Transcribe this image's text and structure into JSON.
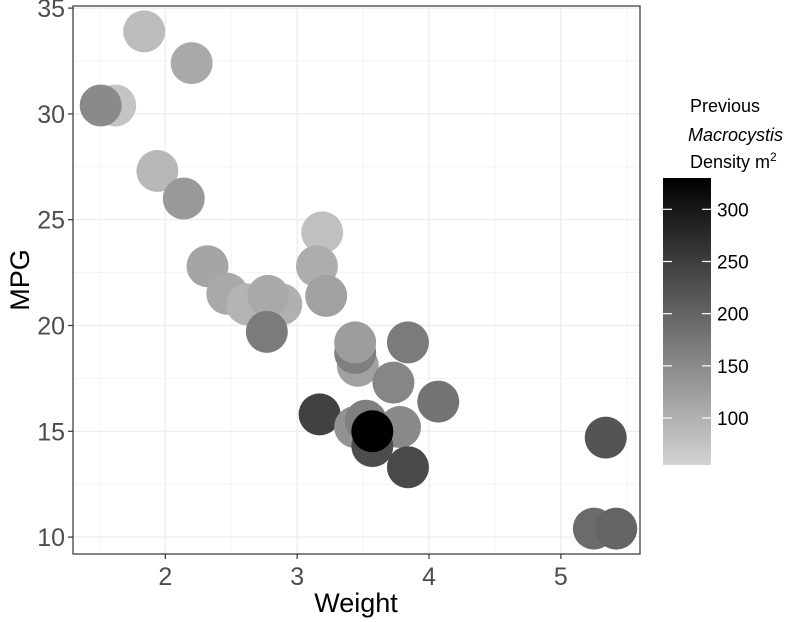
{
  "chart_data": {
    "type": "scatter",
    "title": "",
    "xlabel": "Weight",
    "ylabel": "MPG",
    "xlim": [
      1.3,
      5.6
    ],
    "ylim": [
      9.2,
      35.1
    ],
    "xticks": [
      2,
      3,
      4,
      5
    ],
    "yticks": [
      10,
      15,
      20,
      25,
      30,
      35
    ],
    "x_tick_labels": [
      "2",
      "3",
      "4",
      "5"
    ],
    "y_tick_labels": [
      "10",
      "15",
      "20",
      "25",
      "30",
      "35"
    ],
    "grid": true,
    "legend": {
      "position": "right",
      "title_line1": "Previous",
      "title_line2": "Macrocystis",
      "title_line3_text": "Density m",
      "title_line3_sup": "2",
      "range": [
        55,
        330
      ],
      "ticks": [
        100,
        150,
        200,
        250,
        300
      ],
      "tick_labels": [
        "100",
        "150",
        "200",
        "250",
        "300"
      ],
      "color_low": "#d3d3d3",
      "color_high": "#000000"
    },
    "points": [
      {
        "x": 1.84,
        "y": 33.9,
        "density": 85
      },
      {
        "x": 2.2,
        "y": 32.4,
        "density": 110
      },
      {
        "x": 1.62,
        "y": 30.4,
        "density": 75
      },
      {
        "x": 1.51,
        "y": 30.4,
        "density": 150
      },
      {
        "x": 1.94,
        "y": 27.3,
        "density": 90
      },
      {
        "x": 2.14,
        "y": 26.0,
        "density": 130
      },
      {
        "x": 3.19,
        "y": 24.4,
        "density": 80
      },
      {
        "x": 2.32,
        "y": 22.8,
        "density": 115
      },
      {
        "x": 3.15,
        "y": 22.8,
        "density": 105
      },
      {
        "x": 2.47,
        "y": 21.5,
        "density": 110
      },
      {
        "x": 2.62,
        "y": 21.0,
        "density": 95
      },
      {
        "x": 2.88,
        "y": 21.0,
        "density": 100
      },
      {
        "x": 2.78,
        "y": 21.4,
        "density": 110
      },
      {
        "x": 3.22,
        "y": 21.4,
        "density": 120
      },
      {
        "x": 2.77,
        "y": 19.7,
        "density": 170
      },
      {
        "x": 3.46,
        "y": 18.1,
        "density": 120
      },
      {
        "x": 3.44,
        "y": 18.7,
        "density": 165
      },
      {
        "x": 3.44,
        "y": 19.2,
        "density": 125
      },
      {
        "x": 3.84,
        "y": 19.2,
        "density": 170
      },
      {
        "x": 3.73,
        "y": 17.3,
        "density": 155
      },
      {
        "x": 4.07,
        "y": 16.4,
        "density": 180
      },
      {
        "x": 3.17,
        "y": 15.8,
        "density": 245
      },
      {
        "x": 3.44,
        "y": 15.2,
        "density": 140
      },
      {
        "x": 3.52,
        "y": 15.5,
        "density": 165
      },
      {
        "x": 3.78,
        "y": 15.2,
        "density": 150
      },
      {
        "x": 3.57,
        "y": 14.3,
        "density": 230
      },
      {
        "x": 3.84,
        "y": 13.3,
        "density": 235
      },
      {
        "x": 3.57,
        "y": 15.0,
        "density": 330
      },
      {
        "x": 5.34,
        "y": 14.7,
        "density": 220
      },
      {
        "x": 5.25,
        "y": 10.4,
        "density": 190
      },
      {
        "x": 5.42,
        "y": 10.4,
        "density": 200
      }
    ]
  }
}
